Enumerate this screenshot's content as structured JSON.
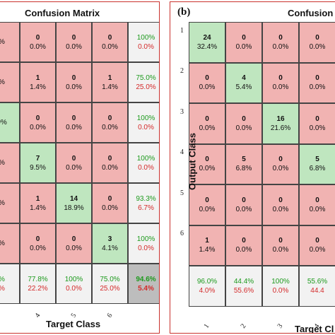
{
  "chart_data": [
    {
      "type": "table",
      "panel_label": "",
      "title": "Confusion Matrix",
      "xlabel": "Target Class",
      "ylabel": "",
      "column_tick_labels": [
        "",
        "4",
        "5",
        "6"
      ],
      "cells": [
        [
          {
            "count": "",
            "pct": "%",
            "kind": "off"
          },
          {
            "count": "0",
            "pct": "0.0%",
            "kind": "off"
          },
          {
            "count": "0",
            "pct": "0.0%",
            "kind": "off"
          },
          {
            "count": "0",
            "pct": "0.0%",
            "kind": "off"
          },
          {
            "top": "100%",
            "bottom": "0.0%",
            "kind": "sum"
          }
        ],
        [
          {
            "count": "",
            "pct": "%",
            "kind": "off"
          },
          {
            "count": "1",
            "pct": "1.4%",
            "kind": "off"
          },
          {
            "count": "0",
            "pct": "0.0%",
            "kind": "off"
          },
          {
            "count": "1",
            "pct": "1.4%",
            "kind": "off"
          },
          {
            "top": "75.0%",
            "bottom": "25.0%",
            "kind": "sum"
          }
        ],
        [
          {
            "count": "",
            "pct": "0%",
            "kind": "diag"
          },
          {
            "count": "0",
            "pct": "0.0%",
            "kind": "off"
          },
          {
            "count": "0",
            "pct": "0.0%",
            "kind": "off"
          },
          {
            "count": "0",
            "pct": "0.0%",
            "kind": "off"
          },
          {
            "top": "100%",
            "bottom": "0.0%",
            "kind": "sum"
          }
        ],
        [
          {
            "count": "",
            "pct": "%",
            "kind": "off"
          },
          {
            "count": "7",
            "pct": "9.5%",
            "kind": "diag"
          },
          {
            "count": "0",
            "pct": "0.0%",
            "kind": "off"
          },
          {
            "count": "0",
            "pct": "0.0%",
            "kind": "off"
          },
          {
            "top": "100%",
            "bottom": "0.0%",
            "kind": "sum"
          }
        ],
        [
          {
            "count": "",
            "pct": "%",
            "kind": "off"
          },
          {
            "count": "1",
            "pct": "1.4%",
            "kind": "off"
          },
          {
            "count": "14",
            "pct": "18.9%",
            "kind": "diag"
          },
          {
            "count": "0",
            "pct": "0.0%",
            "kind": "off"
          },
          {
            "top": "93.3%",
            "bottom": "6.7%",
            "kind": "sum"
          }
        ],
        [
          {
            "count": "",
            "pct": "%",
            "kind": "off"
          },
          {
            "count": "0",
            "pct": "0.0%",
            "kind": "off"
          },
          {
            "count": "0",
            "pct": "0.0%",
            "kind": "off"
          },
          {
            "count": "3",
            "pct": "4.1%",
            "kind": "diag"
          },
          {
            "top": "100%",
            "bottom": "0.0%",
            "kind": "sum"
          }
        ],
        [
          {
            "top": "%",
            "bottom": "%",
            "kind": "sum"
          },
          {
            "top": "77.8%",
            "bottom": "22.2%",
            "kind": "sum"
          },
          {
            "top": "100%",
            "bottom": "0.0%",
            "kind": "sum"
          },
          {
            "top": "75.0%",
            "bottom": "25.0%",
            "kind": "sum"
          },
          {
            "top": "94.6%",
            "bottom": "5.4%",
            "kind": "total"
          }
        ]
      ]
    },
    {
      "type": "table",
      "panel_label": "(b)",
      "title": "Confusion M",
      "xlabel": "Target Cl",
      "ylabel": "Output Class",
      "row_tick_labels": [
        "1",
        "2",
        "3",
        "4",
        "5",
        "6"
      ],
      "column_tick_labels": [
        "1",
        "2",
        "3",
        "4"
      ],
      "cells": [
        [
          {
            "count": "24",
            "pct": "32.4%",
            "kind": "diag"
          },
          {
            "count": "0",
            "pct": "0.0%",
            "kind": "off"
          },
          {
            "count": "0",
            "pct": "0.0%",
            "kind": "off"
          },
          {
            "count": "0",
            "pct": "0.0%",
            "kind": "off"
          },
          {
            "count": "",
            "pct": "",
            "kind": "off"
          }
        ],
        [
          {
            "count": "0",
            "pct": "0.0%",
            "kind": "off"
          },
          {
            "count": "4",
            "pct": "5.4%",
            "kind": "diag"
          },
          {
            "count": "0",
            "pct": "0.0%",
            "kind": "off"
          },
          {
            "count": "0",
            "pct": "0.0%",
            "kind": "off"
          },
          {
            "count": "",
            "pct": "",
            "kind": "off"
          }
        ],
        [
          {
            "count": "0",
            "pct": "0.0%",
            "kind": "off"
          },
          {
            "count": "0",
            "pct": "0.0%",
            "kind": "off"
          },
          {
            "count": "16",
            "pct": "21.6%",
            "kind": "diag"
          },
          {
            "count": "0",
            "pct": "0.0%",
            "kind": "off"
          },
          {
            "count": "",
            "pct": "",
            "kind": "off"
          }
        ],
        [
          {
            "count": "0",
            "pct": "0.0%",
            "kind": "off"
          },
          {
            "count": "5",
            "pct": "6.8%",
            "kind": "off"
          },
          {
            "count": "0",
            "pct": "0.0%",
            "kind": "off"
          },
          {
            "count": "5",
            "pct": "6.8%",
            "kind": "diag"
          },
          {
            "count": "",
            "pct": "",
            "kind": "off"
          }
        ],
        [
          {
            "count": "0",
            "pct": "0.0%",
            "kind": "off"
          },
          {
            "count": "0",
            "pct": "0.0%",
            "kind": "off"
          },
          {
            "count": "0",
            "pct": "0.0%",
            "kind": "off"
          },
          {
            "count": "0",
            "pct": "0.0%",
            "kind": "off"
          },
          {
            "count": "",
            "pct": "",
            "kind": "off"
          }
        ],
        [
          {
            "count": "1",
            "pct": "1.4%",
            "kind": "off"
          },
          {
            "count": "0",
            "pct": "0.0%",
            "kind": "off"
          },
          {
            "count": "0",
            "pct": "0.0%",
            "kind": "off"
          },
          {
            "count": "0",
            "pct": "0.0%",
            "kind": "off"
          },
          {
            "count": "",
            "pct": "",
            "kind": "off"
          }
        ],
        [
          {
            "top": "96.0%",
            "bottom": "4.0%",
            "kind": "sum"
          },
          {
            "top": "44.4%",
            "bottom": "55.6%",
            "kind": "sum"
          },
          {
            "top": "100%",
            "bottom": "0.0%",
            "kind": "sum"
          },
          {
            "top": "55.6%",
            "bottom": "44.4",
            "kind": "sum"
          },
          {
            "top": "",
            "bottom": "",
            "kind": "sum"
          }
        ]
      ]
    }
  ],
  "colors": {
    "diag": "#bfe6bf",
    "off": "#f1b3b2",
    "sum": "#f2f2f2",
    "total": "#bdbdbd",
    "border_panel": "#c9312d",
    "green_text": "#1d9a1d",
    "red_text": "#d42a2a"
  }
}
